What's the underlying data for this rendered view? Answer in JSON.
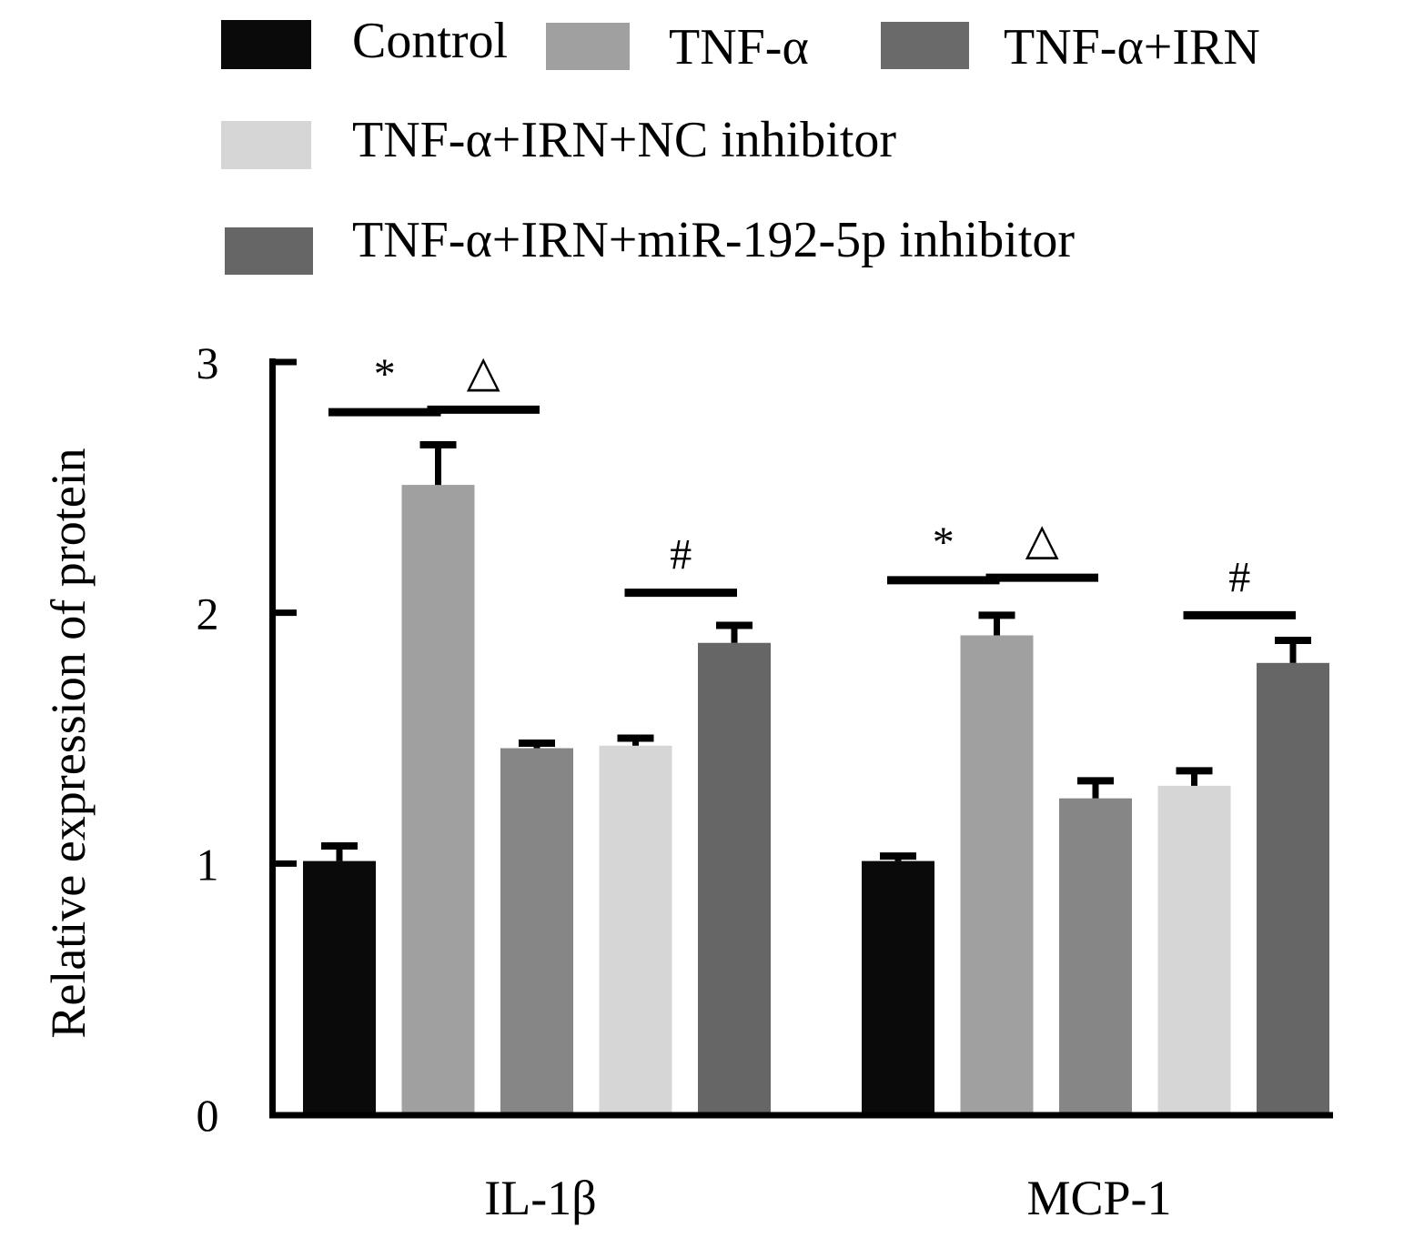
{
  "chart_data": {
    "type": "bar",
    "title": "",
    "xlabel": "",
    "ylabel": "Relative expression of protein",
    "ylim": [
      0,
      3
    ],
    "yticks": [
      "0",
      "1",
      "2",
      "3"
    ],
    "grid": false,
    "legend_position": "top",
    "categories": [
      "IL-1β",
      "MCP-1"
    ],
    "series": [
      {
        "name": "Control",
        "color": "#0a0a0a",
        "values": [
          1.01,
          1.01
        ],
        "errors": [
          0.06,
          0.02
        ]
      },
      {
        "name": "TNF-α",
        "color": "#a0a0a0",
        "values": [
          2.51,
          1.91
        ],
        "errors": [
          0.16,
          0.08
        ]
      },
      {
        "name": "TNF-α+IRN",
        "color": "#868686",
        "values": [
          1.46,
          1.26
        ],
        "errors": [
          0.02,
          0.07
        ]
      },
      {
        "name": "TNF-α+IRN+NC inhibitor",
        "color": "#d6d6d6",
        "values": [
          1.47,
          1.31
        ],
        "errors": [
          0.03,
          0.06
        ]
      },
      {
        "name": "TNF-α+IRN+miR-192-5p inhibitor",
        "color": "#666666",
        "values": [
          1.88,
          1.8
        ],
        "errors": [
          0.07,
          0.09
        ]
      }
    ],
    "legend_colors": [
      "#0a0a0a",
      "#a0a0a0",
      "#6a6a6a",
      "#d6d6d6",
      "#666666"
    ],
    "annotations": [
      {
        "category": "IL-1β",
        "symbol": "*",
        "from_series": 0,
        "to_series": 1,
        "level": 2.8
      },
      {
        "category": "IL-1β",
        "symbol": "△",
        "from_series": 1,
        "to_series": 2,
        "level": 2.81
      },
      {
        "category": "IL-1β",
        "symbol": "#",
        "from_series": 3,
        "to_series": 4,
        "level": 2.08
      },
      {
        "category": "MCP-1",
        "symbol": "*",
        "from_series": 0,
        "to_series": 1,
        "level": 2.13
      },
      {
        "category": "MCP-1",
        "symbol": "△",
        "from_series": 1,
        "to_series": 2,
        "level": 2.14
      },
      {
        "category": "MCP-1",
        "symbol": "#",
        "from_series": 3,
        "to_series": 4,
        "level": 1.99
      }
    ]
  }
}
